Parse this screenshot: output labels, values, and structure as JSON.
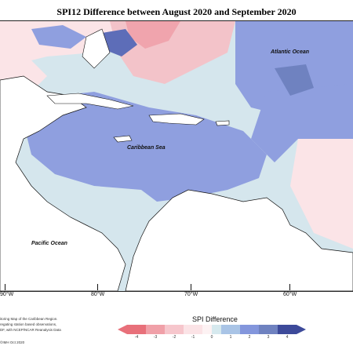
{
  "title": "SPI12 Difference between August 2020 and September 2020",
  "labels": {
    "atlantic": "Atlantic Ocean",
    "caribbean": "Caribbean Sea",
    "pacific": "Pacific Ocean"
  },
  "longitudes": [
    "90°W",
    "80°W",
    "70°W",
    "60°W"
  ],
  "footnote_lines": [
    "itoring Map of the Caribbean Region.",
    "regating station based observations,",
    "DF, with NCEP/NCAR Reanalysis Data"
  ],
  "copyright": "©IMH Oct 2020",
  "legend": {
    "title": "SPI Difference",
    "ticks": [
      "-4",
      "-3",
      "-2",
      "-1",
      "0",
      "1",
      "2",
      "3",
      "4"
    ],
    "colors": {
      "neg4": "#e8707a",
      "neg3": "#f0a0a8",
      "neg2": "#f6c6cc",
      "neg1": "#fbe3e6",
      "zero_neg": "#fdf2f3",
      "zero_pos": "#d6e9ee",
      "pos1": "#a9c4e6",
      "pos2": "#8396dc",
      "pos3": "#6f82c0",
      "pos4": "#3d4a9a"
    }
  },
  "map_colors": {
    "land": "#ffffff",
    "coast": "#111111",
    "light_blue": "#d5e6ed",
    "mid_blue": "#8f9fdf",
    "dark_blue": "#5d6db8",
    "teal": "#9fc0c8",
    "light_pink": "#fbe4e7",
    "pink": "#f3b5bc"
  }
}
